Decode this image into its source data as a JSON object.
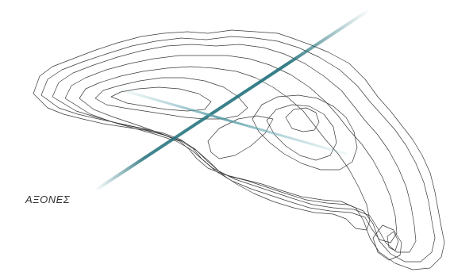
{
  "label": "ΑΞΟΝΕΣ",
  "colors": {
    "background": "#ffffff",
    "contour": "#3a3a3a",
    "axis": "#1f6f7a",
    "axis_light": "#7fbcc4",
    "label": "#333333"
  }
}
